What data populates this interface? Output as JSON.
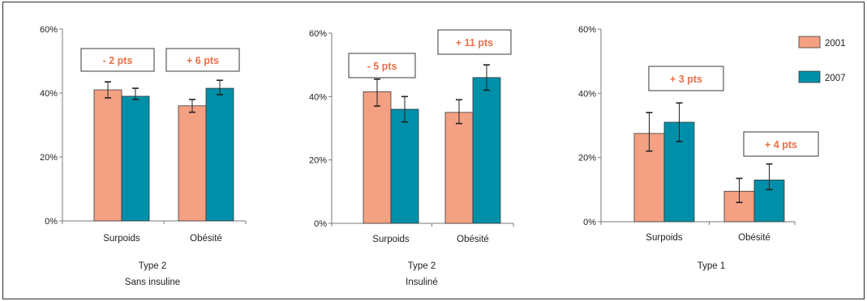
{
  "colors": {
    "c2001": "#f4a082",
    "c2007": "#008fa8",
    "note": "#ea6f48",
    "axis": "#7a7a7a"
  },
  "chart_data": [
    {
      "type": "bar",
      "categories": [
        "Surpoids",
        "Obésité"
      ],
      "series": [
        {
          "name": "2001",
          "values": [
            41,
            36
          ],
          "err_low": [
            38.5,
            34
          ],
          "err_high": [
            43.5,
            38
          ]
        },
        {
          "name": "2007",
          "values": [
            39,
            41.5
          ],
          "err_low": [
            38,
            39.5
          ],
          "err_high": [
            41.5,
            44
          ]
        }
      ],
      "ylim": [
        0,
        60
      ],
      "yticks": [
        "0%",
        "20%",
        "40%",
        "60%"
      ],
      "annotations": [
        "- 2 pts",
        "+ 6 pts"
      ],
      "caption": [
        "Type 2",
        "Sans insuline"
      ]
    },
    {
      "type": "bar",
      "categories": [
        "Surpoids",
        "Obésité"
      ],
      "series": [
        {
          "name": "2001",
          "values": [
            41.5,
            35
          ],
          "err_low": [
            37,
            31.5
          ],
          "err_high": [
            45.5,
            39
          ]
        },
        {
          "name": "2007",
          "values": [
            36,
            46
          ],
          "err_low": [
            32,
            42
          ],
          "err_high": [
            40,
            50
          ]
        }
      ],
      "ylim": [
        0,
        60
      ],
      "yticks": [
        "0%",
        "20%",
        "40%",
        "60%"
      ],
      "annotations": [
        "- 5 pts",
        "+ 11 pts"
      ],
      "caption": [
        "Type 2",
        "Insuliné"
      ]
    },
    {
      "type": "bar",
      "categories": [
        "Surpoids",
        "Obésité"
      ],
      "series": [
        {
          "name": "2001",
          "values": [
            27.5,
            9.5
          ],
          "err_low": [
            22,
            6
          ],
          "err_high": [
            34,
            13.5
          ]
        },
        {
          "name": "2007",
          "values": [
            31,
            13
          ],
          "err_low": [
            25,
            10
          ],
          "err_high": [
            37,
            18
          ]
        }
      ],
      "ylim": [
        0,
        60
      ],
      "yticks": [
        "0%",
        "20%",
        "40%",
        "60%"
      ],
      "annotations": [
        "+ 3 pts",
        "+ 4 pts"
      ],
      "caption": [
        "Type 1"
      ],
      "legend": {
        "position": "top-right",
        "entries": [
          "2001",
          "2007"
        ]
      }
    }
  ]
}
